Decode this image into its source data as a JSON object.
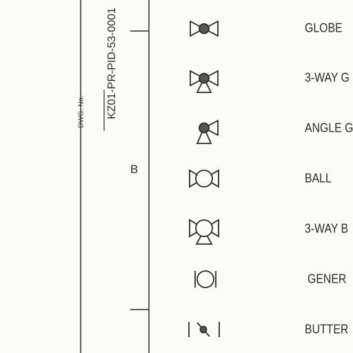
{
  "title_block": {
    "dwg_label": "DWG. No.",
    "dwg_number": "KZ01-PR-PID-53-0001"
  },
  "zone_marker": "B",
  "legend": [
    {
      "label": "GLOBE",
      "icon": "globe-valve-icon"
    },
    {
      "label": "3-WAY G",
      "icon": "three-way-globe-valve-icon"
    },
    {
      "label": "ANGLE G",
      "icon": "angle-globe-valve-icon"
    },
    {
      "label": "BALL",
      "icon": "ball-valve-icon"
    },
    {
      "label": "3-WAY B",
      "icon": "three-way-ball-valve-icon"
    },
    {
      "label": "GENER",
      "icon": "generic-valve-icon"
    },
    {
      "label": "BUTTER",
      "icon": "butterfly-valve-icon"
    }
  ],
  "colors": {
    "line": "#2a2a2a",
    "fill_dark": "#555555",
    "paper": "#fbfbf8"
  }
}
